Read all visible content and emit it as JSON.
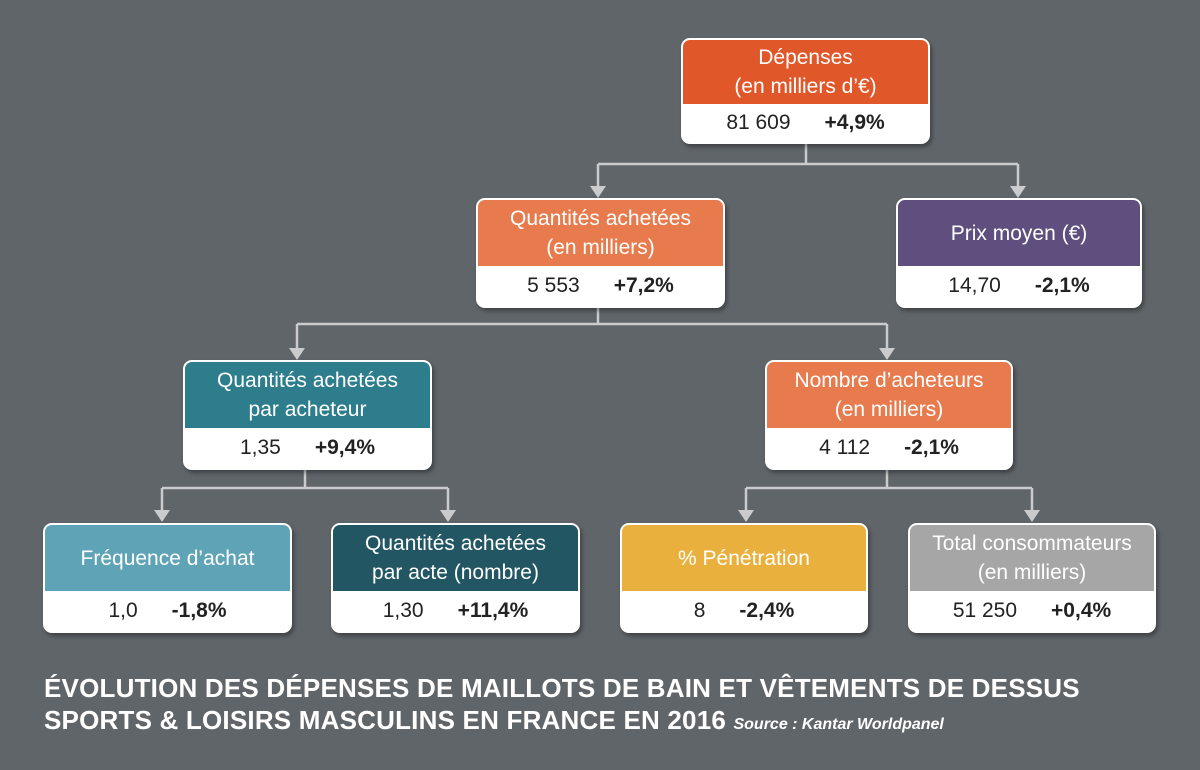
{
  "colors": {
    "background": "#5f6569",
    "red_orange": "#e0572a",
    "orange": "#e77b4d",
    "purple": "#5e4f7e",
    "teal": "#2d7d8d",
    "light_teal": "#5fa3b7",
    "dark_teal": "#225663",
    "yellow": "#eab03d",
    "gray": "#a6a6a6",
    "connector": "#c9cbcc"
  },
  "nodes": {
    "depenses": {
      "label1": "Dépenses",
      "label2": "(en milliers d’€)",
      "value": "81 609",
      "change": "+4,9%"
    },
    "quantites": {
      "label1": "Quantités achetées",
      "label2": "(en milliers)",
      "value": "5 553",
      "change": "+7,2%"
    },
    "prix": {
      "label1": "Prix moyen (€)",
      "value": "14,70",
      "change": "-2,1%"
    },
    "qte_acheteur": {
      "label1": "Quantités achetées",
      "label2": "par acheteur",
      "value": "1,35",
      "change": "+9,4%"
    },
    "nb_acheteurs": {
      "label1": "Nombre d’acheteurs",
      "label2": "(en milliers)",
      "value": "4 112",
      "change": "-2,1%"
    },
    "frequence": {
      "label1": "Fréquence d’achat",
      "value": "1,0",
      "change": "-1,8%"
    },
    "qte_acte": {
      "label1": "Quantités achetées",
      "label2": "par acte (nombre)",
      "value": "1,30",
      "change": "+11,4%"
    },
    "penetration": {
      "label1": "% Pénétration",
      "value": "8",
      "change": "-2,4%"
    },
    "total_conso": {
      "label1": "Total consommateurs",
      "label2": "(en milliers)",
      "value": "51 250",
      "change": "+0,4%"
    }
  },
  "footer": {
    "title_line1": "ÉVOLUTION DES DÉPENSES DE MAILLOTS DE BAIN ET VÊTEMENTS DE DESSUS",
    "title_line2": "SPORTS & LOISIRS MASCULINS EN FRANCE EN 2016",
    "source": "Source : Kantar Worldpanel"
  }
}
